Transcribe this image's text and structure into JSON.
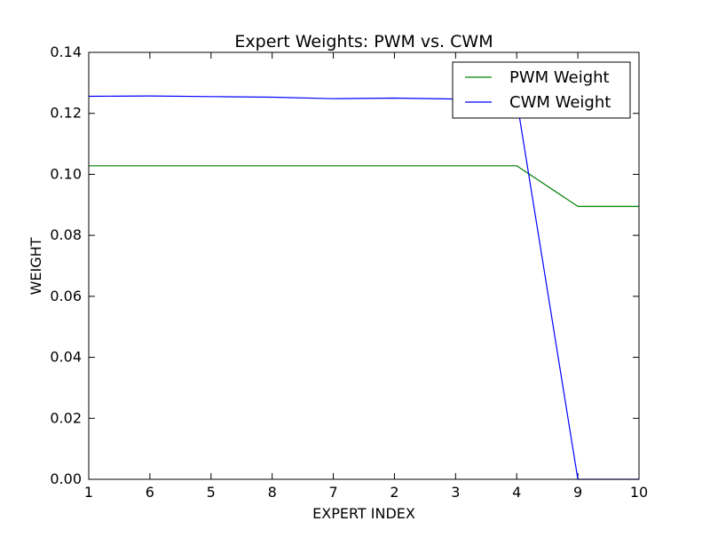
{
  "chart_data": {
    "type": "line",
    "title": "Expert Weights: PWM vs. CWM",
    "xlabel": "EXPERT INDEX",
    "ylabel": "WEIGHT",
    "categories": [
      "1",
      "6",
      "5",
      "8",
      "7",
      "2",
      "3",
      "4",
      "9",
      "10"
    ],
    "ylim": [
      0,
      0.14
    ],
    "yticks": [
      "0.00",
      "0.02",
      "0.04",
      "0.06",
      "0.08",
      "0.10",
      "0.12",
      "0.14"
    ],
    "series": [
      {
        "name": "PWM Weight",
        "color": "#008000",
        "values": [
          0.1028,
          0.1028,
          0.1028,
          0.1028,
          0.1028,
          0.1028,
          0.1028,
          0.1028,
          0.0895,
          0.0895
        ]
      },
      {
        "name": "CWM Weight",
        "color": "#0000ff",
        "values": [
          0.1256,
          0.1257,
          0.1255,
          0.1253,
          0.1248,
          0.125,
          0.1247,
          0.1244,
          0.0,
          0.0
        ]
      }
    ],
    "grid": false,
    "legend": "top-right"
  }
}
